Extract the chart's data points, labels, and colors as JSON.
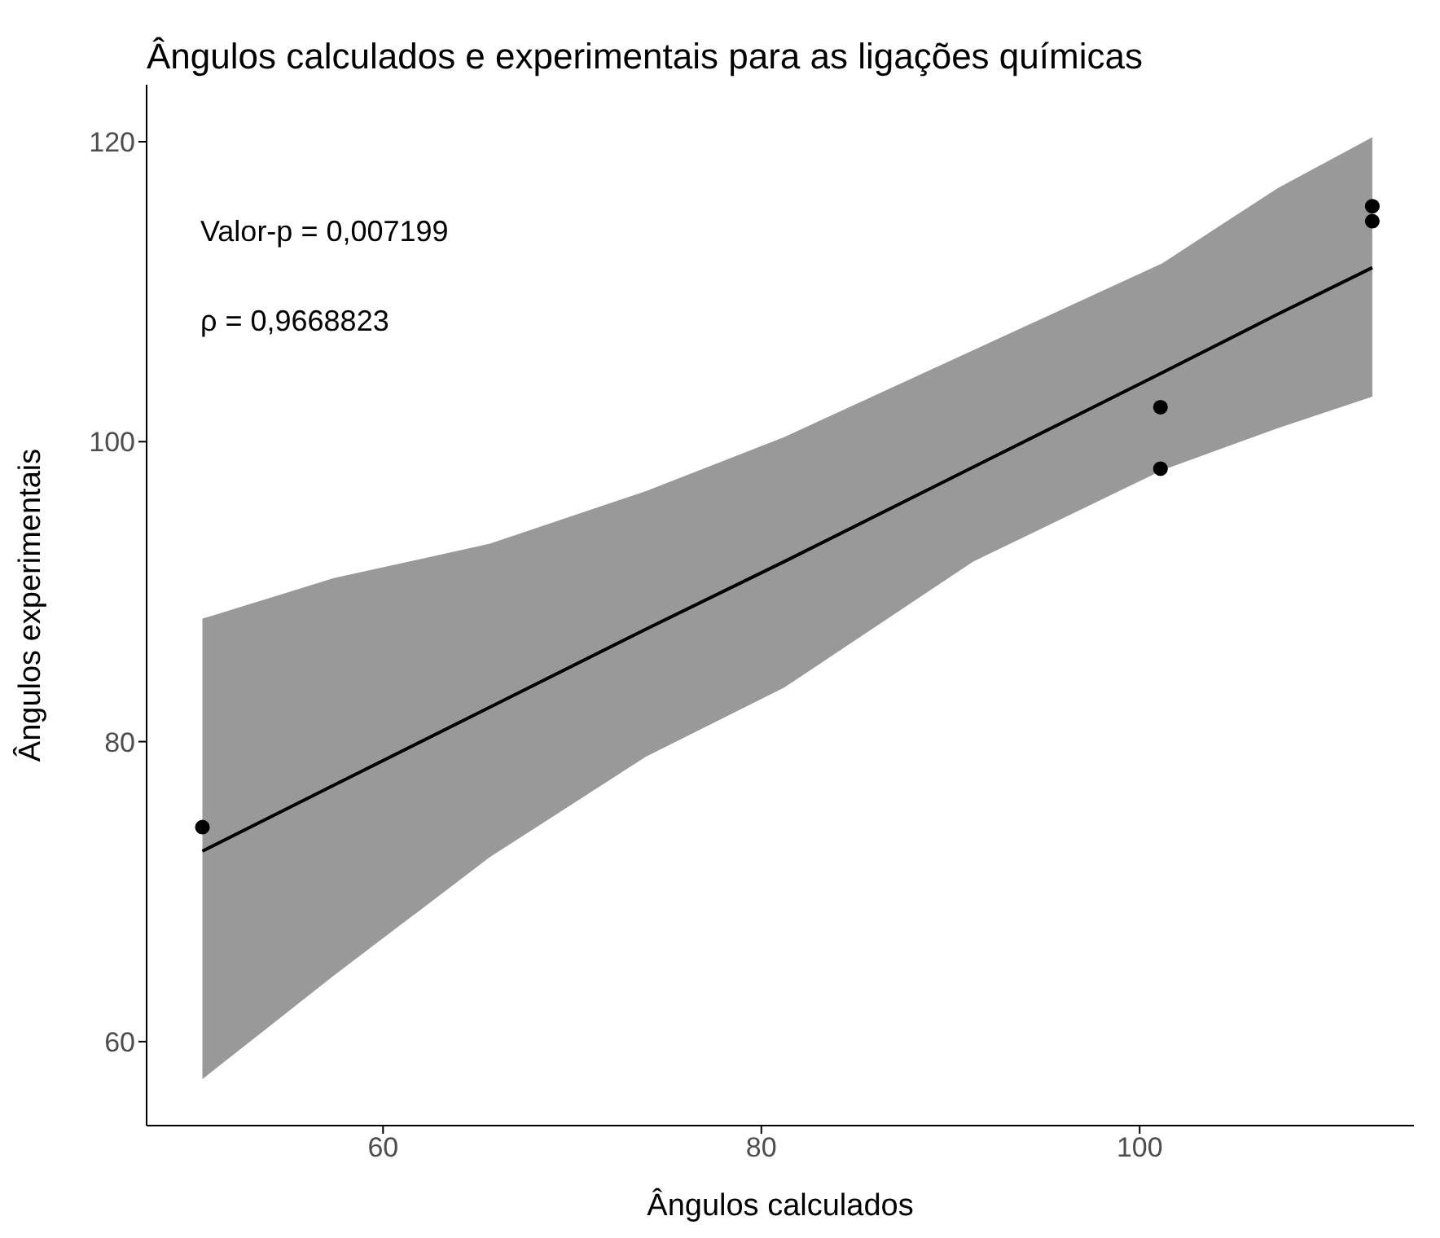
{
  "chart_data": {
    "type": "scatter",
    "title": "Ângulos calculados e experimentais para as ligações químicas",
    "xlabel": "Ângulos calculados",
    "ylabel": "Ângulos experimentais",
    "annotations": [
      "Valor-p = 0,007199",
      "ρ = 0,9668823"
    ],
    "xlim": [
      47.5,
      114.5
    ],
    "xticks": [
      60,
      80,
      100
    ],
    "ylim": [
      54.4,
      123.8
    ],
    "yticks": [
      60,
      80,
      100,
      120
    ],
    "series": [
      {
        "marker": "circle",
        "color": "#000000",
        "x": [
          50.45,
          101.1,
          101.1,
          112.3,
          112.3
        ],
        "values": [
          74.3,
          102.3,
          98.2,
          115.7,
          114.7
        ]
      },
      {
        "type": "line",
        "marker": "none",
        "line_style": "solid",
        "color": "#000000",
        "x": [
          50.45,
          57.4,
          65.65,
          73.9,
          81.2,
          91.2,
          101.2,
          107.3,
          112.3
        ],
        "values": [
          72.7,
          77.1,
          82.3,
          87.5,
          92.0,
          98.3,
          104.6,
          108.5,
          111.6
        ],
        "lower": [
          57.5,
          64.4,
          72.3,
          79.0,
          83.6,
          92.0,
          98.1,
          100.9,
          103.0
        ],
        "upper": [
          88.2,
          90.9,
          93.2,
          96.7,
          100.3,
          106.1,
          111.9,
          116.9,
          120.3
        ]
      }
    ]
  }
}
